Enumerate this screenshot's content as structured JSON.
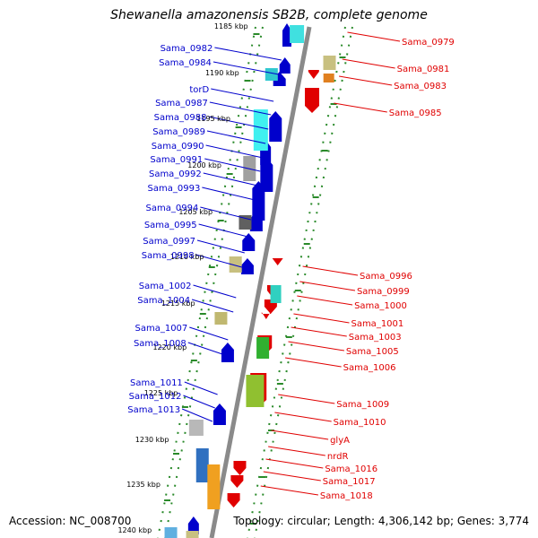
{
  "title": "Shewanella amazonensis SB2B, complete genome",
  "accession": "Accession: NC_008700",
  "summary": "Topology: circular; Length: 4,306,142 bp; Genes: 3,774",
  "colors": {
    "forward": "#0000cc",
    "reverse": "#e00000",
    "ticks": "#2a8a2a",
    "backbone": "#888888"
  },
  "kbp_labels": [
    "1185 kbp",
    "1190 kbp",
    "1195 kbp",
    "1200 kbp",
    "1205 kbp",
    "1210 kbp",
    "1215 kbp",
    "1220 kbp",
    "1225 kbp",
    "1230 kbp",
    "1235 kbp",
    "1240 kbp"
  ],
  "forward_genes": [
    "Sama_0982",
    "Sama_0984",
    "torD",
    "Sama_0987",
    "Sama_0988",
    "Sama_0989",
    "Sama_0990",
    "Sama_0991",
    "Sama_0992",
    "Sama_0993",
    "Sama_0994",
    "Sama_0995",
    "Sama_0997",
    "Sama_0998",
    "Sama_1002",
    "Sama_1004",
    "Sama_1007",
    "Sama_1008",
    "Sama_1011",
    "Sama_1012",
    "Sama_1013"
  ],
  "reverse_genes": [
    "Sama_0979",
    "Sama_0981",
    "Sama_0983",
    "Sama_0985",
    "Sama_0996",
    "Sama_0999",
    "Sama_1000",
    "Sama_1001",
    "Sama_1003",
    "Sama_1005",
    "Sama_1006",
    "Sama_1009",
    "Sama_1010",
    "glyA",
    "nrdR",
    "Sama_1016",
    "Sama_1017",
    "Sama_1018"
  ]
}
